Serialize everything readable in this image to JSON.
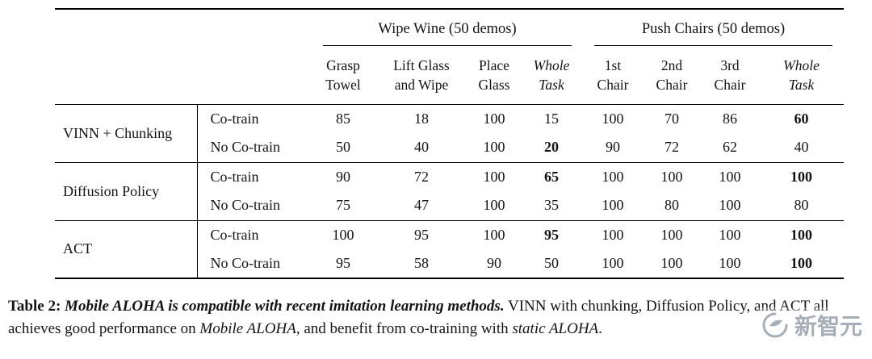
{
  "table": {
    "col_groups": [
      {
        "label": "Wipe Wine (50 demos)",
        "span": 4
      },
      {
        "label": "Push Chairs (50 demos)",
        "span": 4
      }
    ],
    "columns": [
      {
        "lines": [
          "Grasp",
          "Towel"
        ],
        "italic": false
      },
      {
        "lines": [
          "Lift Glass",
          "and Wipe"
        ],
        "italic": false
      },
      {
        "lines": [
          "Place",
          "Glass"
        ],
        "italic": false
      },
      {
        "lines": [
          "Whole",
          "Task"
        ],
        "italic": true
      },
      {
        "lines": [
          "1st",
          "Chair"
        ],
        "italic": false
      },
      {
        "lines": [
          "2nd",
          "Chair"
        ],
        "italic": false
      },
      {
        "lines": [
          "3rd",
          "Chair"
        ],
        "italic": false
      },
      {
        "lines": [
          "Whole",
          "Task"
        ],
        "italic": true
      }
    ],
    "groups": [
      {
        "method": "VINN + Chunking",
        "rows": [
          {
            "variant": "Co-train",
            "values": [
              85,
              18,
              100,
              15,
              100,
              70,
              86,
              60
            ],
            "bold": [
              7
            ]
          },
          {
            "variant": "No Co-train",
            "values": [
              50,
              40,
              100,
              20,
              90,
              72,
              62,
              40
            ],
            "bold": [
              3
            ]
          }
        ]
      },
      {
        "method": "Diffusion Policy",
        "rows": [
          {
            "variant": "Co-train",
            "values": [
              90,
              72,
              100,
              65,
              100,
              100,
              100,
              100
            ],
            "bold": [
              3,
              7
            ]
          },
          {
            "variant": "No Co-train",
            "values": [
              75,
              47,
              100,
              35,
              100,
              80,
              100,
              80
            ],
            "bold": []
          }
        ]
      },
      {
        "method": "ACT",
        "rows": [
          {
            "variant": "Co-train",
            "values": [
              100,
              95,
              100,
              95,
              100,
              100,
              100,
              100
            ],
            "bold": [
              3,
              7
            ]
          },
          {
            "variant": "No Co-train",
            "values": [
              95,
              58,
              90,
              50,
              100,
              100,
              100,
              100
            ],
            "bold": [
              7
            ]
          }
        ]
      }
    ]
  },
  "caption": {
    "label": "Table 2: ",
    "title": "Mobile ALOHA is compatible with recent imitation learning methods.",
    "text_1": " VINN with chunking, Diffusion Policy, and ACT all achieves good performance on ",
    "italic_1": "Mobile ALOHA",
    "text_2": ", and benefit from co-training with ",
    "italic_2": "static ALOHA",
    "text_3": "."
  },
  "watermark": {
    "text": "新智元"
  }
}
